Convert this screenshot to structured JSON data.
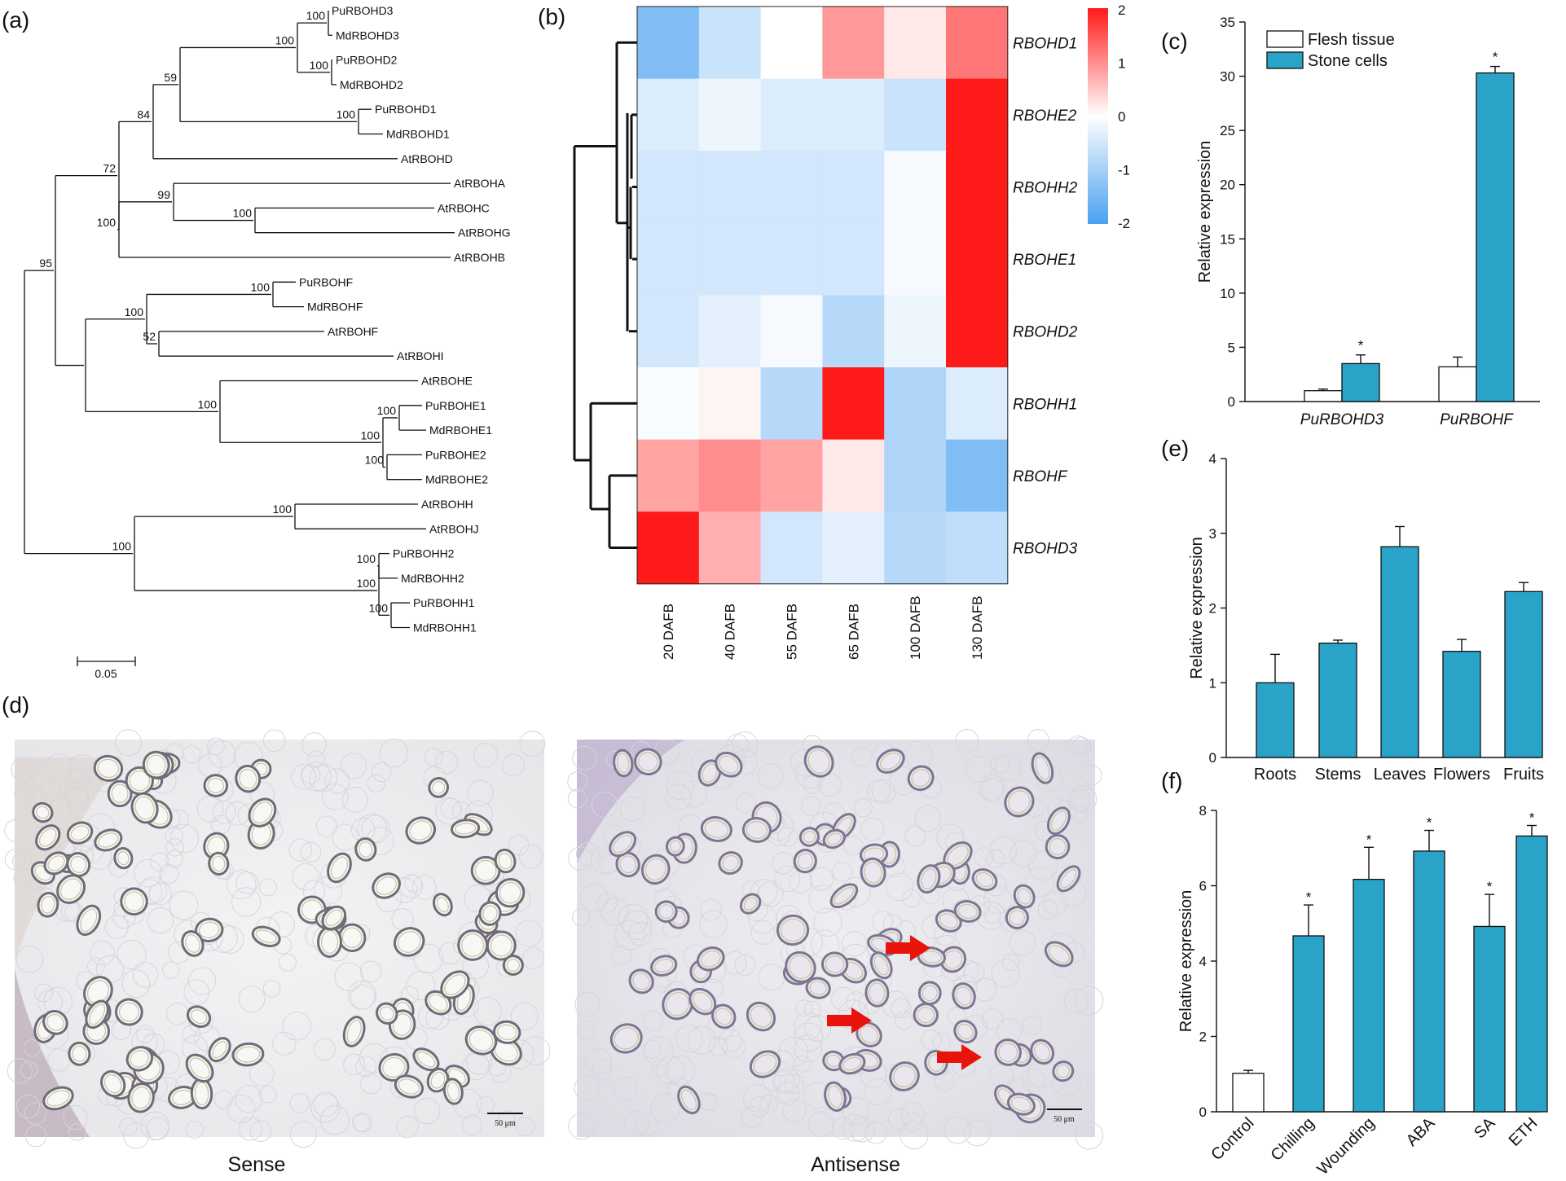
{
  "panel_labels": {
    "a": "(a)",
    "b": "(b)",
    "c": "(c)",
    "d": "(d)",
    "e": "(e)",
    "f": "(f)"
  },
  "tree": {
    "leaves": [
      "PuRBOHD3",
      "MdRBOHD3",
      "PuRBOHD2",
      "MdRBOHD2",
      "PuRBOHD1",
      "MdRBOHD1",
      "AtRBOHD",
      "AtRBOHA",
      "AtRBOHC",
      "AtRBOHG",
      "AtRBOHB",
      "PuRBOHF",
      "MdRBOHF",
      "AtRBOHF",
      "AtRBOHI",
      "AtRBOHE",
      "PuRBOHE1",
      "MdRBOHE1",
      "PuRBOHE2",
      "MdRBOHE2",
      "AtRBOHH",
      "AtRBOHJ",
      "PuRBOHH2",
      "MdRBOHH2",
      "PuRBOHH1",
      "MdRBOHH1"
    ],
    "bootstrap": [
      "100",
      "100",
      "100",
      "59",
      "100",
      "84",
      "72",
      "100",
      "99",
      "100",
      "100",
      "100",
      "52",
      "95",
      "100",
      "100",
      "100",
      "100",
      "100",
      "100",
      "100",
      "100",
      "100"
    ],
    "scale_bar": "0.05"
  },
  "chart_data": [
    {
      "type": "heatmap",
      "panel": "b",
      "rows": [
        "RBOHD1",
        "RBOHE2",
        "RBOHH2",
        "RBOHE1",
        "RBOHD2",
        "RBOHH1",
        "RBOHF",
        "RBOHD3"
      ],
      "columns": [
        "20 DAFB",
        "40 DAFB",
        "55 DAFB",
        "65 DAFB",
        "100 DAFB",
        "130 DAFB"
      ],
      "values": [
        [
          -1.4,
          -0.6,
          0.0,
          0.9,
          0.2,
          1.2
        ],
        [
          -0.4,
          -0.2,
          -0.4,
          -0.4,
          -0.6,
          2.0
        ],
        [
          -0.5,
          -0.5,
          -0.5,
          -0.5,
          -0.1,
          2.0
        ],
        [
          -0.5,
          -0.5,
          -0.5,
          -0.5,
          -0.1,
          2.0
        ],
        [
          -0.5,
          -0.3,
          -0.1,
          -0.8,
          -0.2,
          2.0
        ],
        [
          -0.05,
          0.1,
          -0.8,
          2.0,
          -0.9,
          -0.4
        ],
        [
          0.8,
          1.0,
          0.8,
          0.2,
          -0.9,
          -1.4
        ],
        [
          2.0,
          0.7,
          -0.5,
          -0.3,
          -0.8,
          -0.7
        ]
      ],
      "colorbar": {
        "min": -2,
        "max": 2,
        "ticks": [
          "2",
          "1",
          "0",
          "-1",
          "-2"
        ]
      }
    },
    {
      "type": "bar",
      "panel": "c",
      "categories": [
        "PuRBOHD3",
        "PuRBOHF"
      ],
      "series": [
        {
          "name": "Flesh tissue",
          "values": [
            1.0,
            3.2
          ],
          "errors": [
            0.15,
            0.9
          ],
          "color": "#ffffff"
        },
        {
          "name": "Stone cells",
          "values": [
            3.5,
            30.3
          ],
          "errors": [
            0.8,
            0.6
          ],
          "color": "#2aa3c8"
        }
      ],
      "significance": [
        "*",
        "*"
      ],
      "ylabel": "Relative expression",
      "ylim": [
        0,
        35
      ],
      "yticks": [
        "0",
        "5",
        "10",
        "15",
        "20",
        "25",
        "30",
        "35"
      ]
    },
    {
      "type": "bar",
      "panel": "e",
      "categories": [
        "Roots",
        "Stems",
        "Leaves",
        "Flowers",
        "Fruits"
      ],
      "values": [
        1.0,
        1.53,
        2.82,
        1.42,
        2.22
      ],
      "errors": [
        0.38,
        0.04,
        0.27,
        0.16,
        0.12
      ],
      "color": "#2aa3c8",
      "ylabel": "Relative expression",
      "ylim": [
        0,
        4
      ],
      "yticks": [
        "0",
        "1",
        "2",
        "3",
        "4"
      ]
    },
    {
      "type": "bar",
      "panel": "f",
      "categories": [
        "Control",
        "Chilling",
        "Wounding",
        "ABA",
        "SA",
        "ETH"
      ],
      "values": [
        1.02,
        4.67,
        6.17,
        6.92,
        4.92,
        7.32
      ],
      "errors": [
        0.08,
        0.82,
        0.85,
        0.55,
        0.85,
        0.28
      ],
      "colors": [
        "#ffffff",
        "#2aa3c8",
        "#2aa3c8",
        "#2aa3c8",
        "#2aa3c8",
        "#2aa3c8"
      ],
      "significance": [
        "",
        "*",
        "*",
        "*",
        "*",
        "*"
      ],
      "ylabel": "Relative expression",
      "ylim": [
        0,
        8
      ],
      "yticks": [
        "0",
        "2",
        "4",
        "6",
        "8"
      ]
    }
  ],
  "micrographs": {
    "left_caption": "Sense",
    "right_caption": "Antisense",
    "scale_label": "50 μm"
  },
  "colors": {
    "bar": "#2aa3c8",
    "heat_high": "#ff1a1a",
    "heat_low": "#4aa0ef",
    "arrow": "#e8140c"
  }
}
